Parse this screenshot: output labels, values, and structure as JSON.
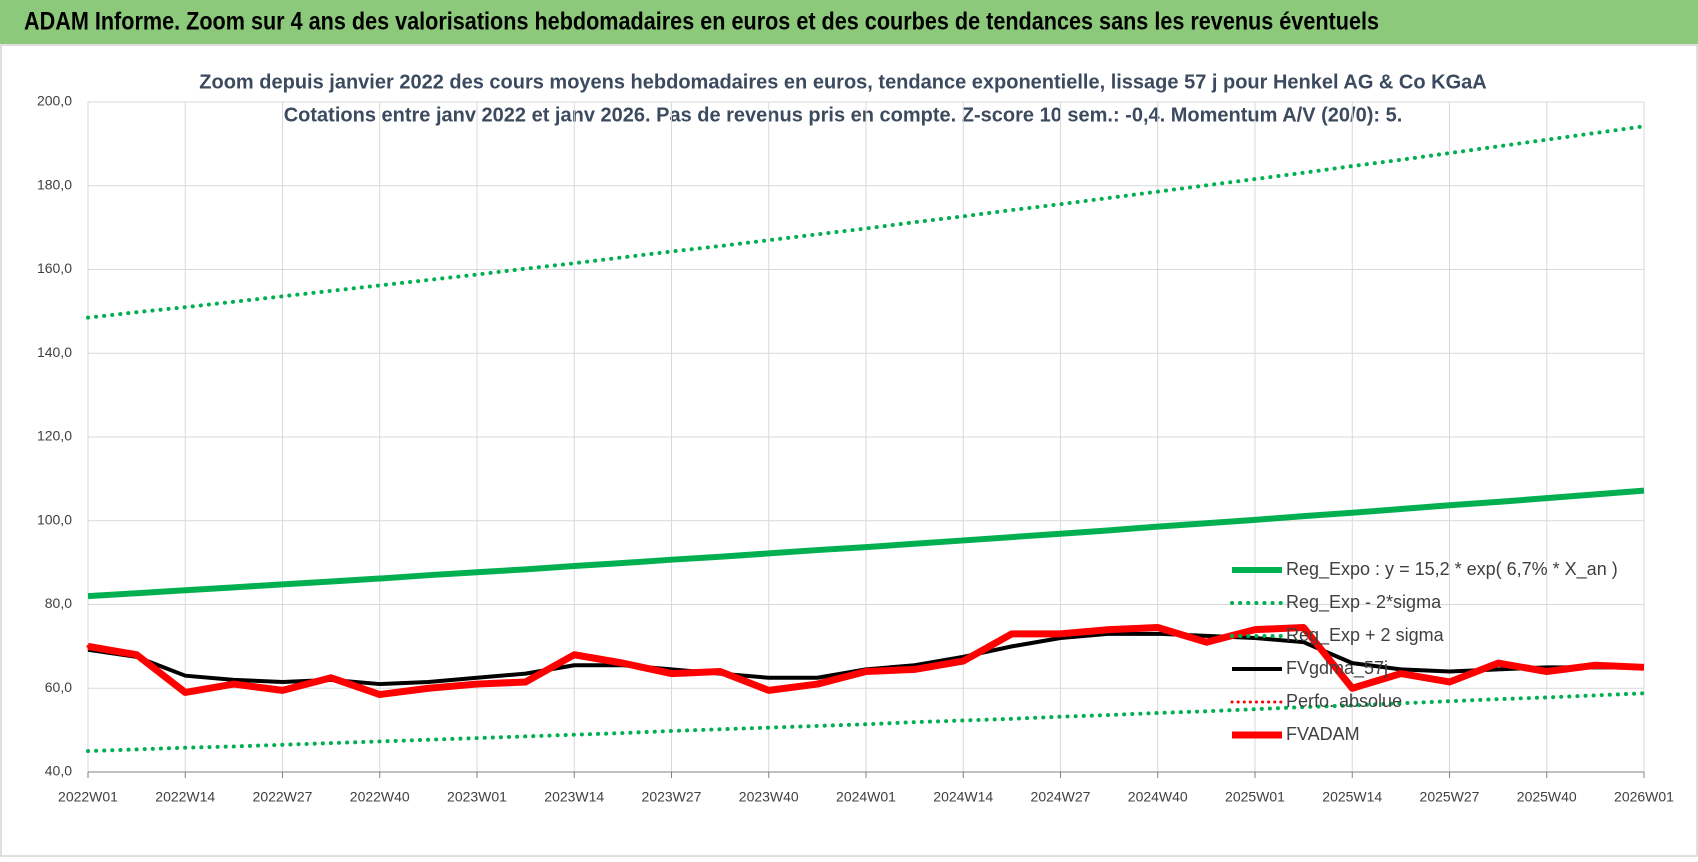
{
  "header": {
    "title": "ADAM Informe. Zoom sur 4 ans des valorisations hebdomadaires en euros et des courbes de tendances sans les revenus éventuels"
  },
  "chart_data": {
    "type": "line",
    "title": "Zoom depuis janvier 2022 des cours moyens hebdomadaires en euros, tendance exponentielle, lissage 57 j pour Henkel AG & Co KGaA",
    "subtitle": "Cotations entre janv 2022 et janv 2026. Pas de revenus pris en compte. Z-score 10 sem.: -0,4. Momentum A/V (20/0): 5.",
    "categories": [
      "2022W01",
      null,
      "2022W14",
      null,
      "2022W27",
      null,
      "2022W40",
      null,
      "2023W01",
      null,
      "2023W14",
      null,
      "2023W27",
      null,
      "2023W40",
      null,
      "2024W01",
      null,
      "2024W14",
      null,
      "2024W27",
      null,
      "2024W40",
      null,
      "2025W01",
      null,
      "2025W14",
      null,
      "2025W27",
      null,
      "2025W40",
      null,
      "2026W01"
    ],
    "ylim": [
      40,
      200
    ],
    "yticks": [
      {
        "value": 40,
        "label": "40,0"
      },
      {
        "value": 60,
        "label": "60,0"
      },
      {
        "value": 80,
        "label": "80,0"
      },
      {
        "value": 100,
        "label": "100,0"
      },
      {
        "value": 120,
        "label": "120,0"
      },
      {
        "value": 140,
        "label": "140,0"
      },
      {
        "value": 160,
        "label": "160,0"
      },
      {
        "value": 180,
        "label": "180,0"
      },
      {
        "value": 200,
        "label": "200,0"
      }
    ],
    "grid": true,
    "legend": "right",
    "series": [
      {
        "name": "Reg_Expo : y = 15,2 * exp( 6,7% *  X_an )",
        "color": "#00b050",
        "style": "solid",
        "values": [
          82.0,
          82.7,
          83.4,
          84.1,
          84.8,
          85.5,
          86.2,
          87.0,
          87.7,
          88.4,
          89.2,
          89.9,
          90.7,
          91.4,
          92.2,
          93.0,
          93.7,
          94.5,
          95.3,
          96.1,
          96.9,
          97.7,
          98.6,
          99.4,
          100.2,
          101.1,
          101.9,
          102.8,
          103.7,
          104.5,
          105.4,
          106.3,
          107.2
        ]
      },
      {
        "name": "Reg_Exp - 2*sigma",
        "color": "#00b050",
        "style": "dotted",
        "values": [
          45.0,
          45.4,
          45.8,
          46.1,
          46.5,
          46.9,
          47.3,
          47.7,
          48.1,
          48.5,
          48.9,
          49.3,
          49.8,
          50.2,
          50.6,
          51.0,
          51.4,
          51.9,
          52.3,
          52.7,
          53.2,
          53.6,
          54.1,
          54.5,
          55.0,
          55.5,
          55.9,
          56.4,
          56.9,
          57.4,
          57.8,
          58.3,
          58.8
        ]
      },
      {
        "name": "Reg_Exp + 2 sigma",
        "color": "#00b050",
        "style": "dotted",
        "values": [
          148.5,
          149.8,
          151.0,
          152.3,
          153.6,
          154.9,
          156.2,
          157.5,
          158.8,
          160.2,
          161.5,
          162.9,
          164.3,
          165.6,
          167.0,
          168.4,
          169.8,
          171.3,
          172.7,
          174.2,
          175.6,
          177.1,
          178.6,
          180.1,
          181.6,
          183.1,
          184.7,
          186.2,
          187.8,
          189.4,
          191.0,
          192.6,
          194.2
        ]
      },
      {
        "name": "FVgdma_57j",
        "color": "#000000",
        "style": "solid",
        "values": [
          69.2,
          67.5,
          63,
          62,
          61.5,
          62,
          61,
          61.5,
          62.5,
          63.5,
          65.5,
          65.5,
          64.5,
          63.5,
          62.5,
          62.5,
          64.5,
          65.5,
          67.5,
          70,
          72,
          73,
          73,
          72.5,
          72,
          71,
          66,
          64.5,
          64,
          64.5,
          65,
          65,
          65
        ]
      },
      {
        "name": "Perfo. absolue",
        "color": "#ff0000",
        "style": "dotted",
        "values": [
          70,
          68,
          59,
          61,
          59.5,
          62.5,
          58.5,
          60,
          61,
          61.5,
          68,
          66,
          63.5,
          64,
          59.5,
          61,
          64,
          64.5,
          66.5,
          73,
          73,
          74,
          74.5,
          71,
          74,
          74.5,
          60,
          63.5,
          61.5,
          66,
          64,
          65.5,
          65
        ]
      },
      {
        "name": "FVADAM",
        "color": "#ff0000",
        "style": "solid",
        "values": [
          70,
          68,
          59,
          61,
          59.5,
          62.5,
          58.5,
          60,
          61,
          61.5,
          68,
          66,
          63.5,
          64,
          59.5,
          61,
          64,
          64.5,
          66.5,
          73,
          73,
          74,
          74.5,
          71,
          74,
          74.5,
          60,
          63.5,
          61.5,
          66,
          64,
          65.5,
          65
        ]
      }
    ]
  }
}
